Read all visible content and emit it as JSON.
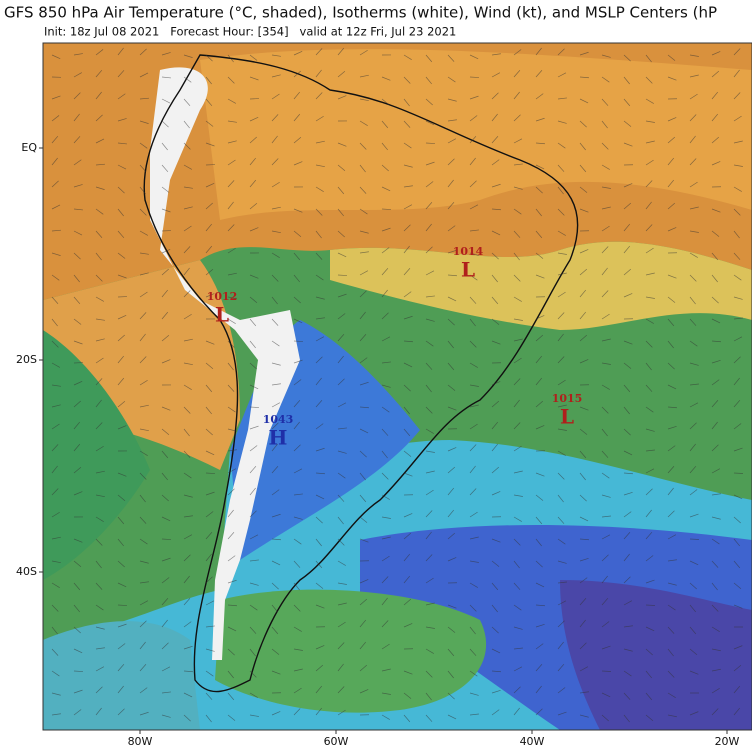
{
  "header": {
    "title": "GFS 850 hPa Air Temperature (°C, shaded), Isotherms (white), Wind (kt), and MSLP Centers (hP",
    "subtitle": "Init: 18z Jul 08 2021   Forecast Hour: [354]   valid at 12z Fri, Jul 23 2021"
  },
  "map": {
    "lat_labels": [
      "EQ",
      "20S",
      "40S"
    ],
    "lon_labels": [
      "80W",
      "60W",
      "40W",
      "20W"
    ],
    "centers": [
      {
        "pressure": 1014,
        "symbol": "L"
      },
      {
        "pressure": 1012,
        "symbol": "L"
      },
      {
        "pressure": 1015,
        "symbol": "L"
      },
      {
        "pressure": 1043,
        "symbol": "H"
      }
    ]
  }
}
